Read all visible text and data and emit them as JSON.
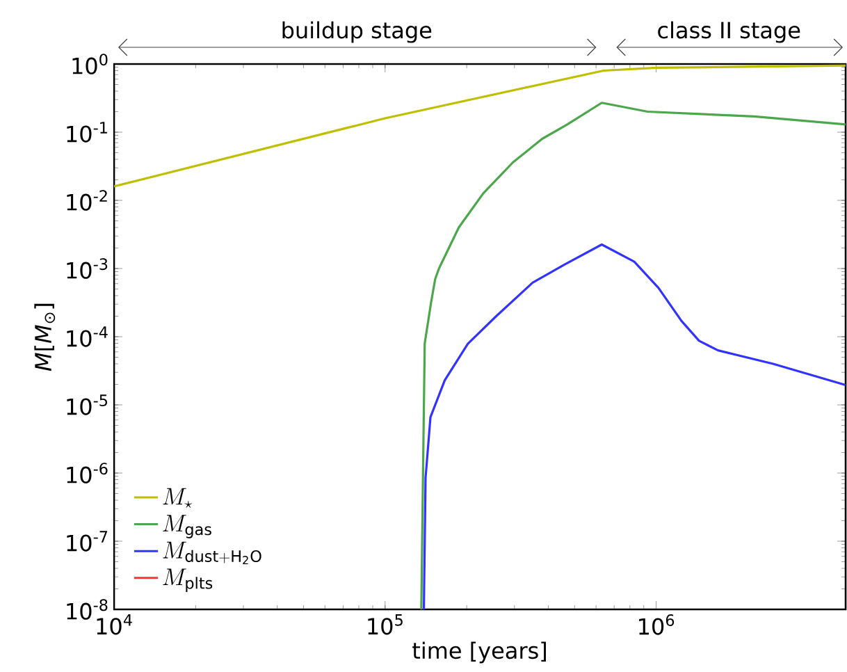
{
  "chart_data": {
    "type": "line",
    "xlabel": "time [years]",
    "ylabel": "*M*[*M*$_{⊙}$]",
    "annotations": [
      "buildup stage",
      "class II stage"
    ],
    "log": "xy",
    "legend": "bottom left",
    "grid": false,
    "xlim": [
      10000,
      5000000
    ],
    "ylim": [
      1e-08,
      1
    ],
    "xticks": [
      {
        "value": 10000,
        "label": "10$^{4}$"
      },
      {
        "value": 100000,
        "label": "10$^{5}$"
      },
      {
        "value": 1000000,
        "label": "10$^{6}$"
      }
    ],
    "yticks": [
      {
        "value": 1e-08,
        "label": "10$^{-8}$"
      },
      {
        "value": 1e-07,
        "label": "10$^{-7}$"
      },
      {
        "value": 1e-06,
        "label": "10$^{-6}$"
      },
      {
        "value": 1e-05,
        "label": "10$^{-5}$"
      },
      {
        "value": 0.0001,
        "label": "10$^{-4}$"
      },
      {
        "value": 0.001,
        "label": "10$^{-3}$"
      },
      {
        "value": 0.01,
        "label": "10$^{-2}$"
      },
      {
        "value": 0.1,
        "label": "10$^{-1}$"
      },
      {
        "value": 1,
        "label": "10$^{0}$"
      }
    ],
    "series": [
      {
        "name": "M_\\star",
        "color": "#bfbf00",
        "x": [
          10000,
          100000,
          640000,
          1000000,
          5000000
        ],
        "values": [
          0.016,
          0.16,
          0.8,
          0.88,
          0.95
        ]
      },
      {
        "name": "M_{\\mathrm{gas}}",
        "color": "#4ca64c",
        "x": [
          136000,
          138000,
          140000,
          148000,
          153000,
          158000,
          187000,
          230000,
          296000,
          380000,
          470000,
          630000,
          930000,
          2300000,
          5000000
        ],
        "values": [
          1e-08,
          1e-06,
          8e-05,
          0.00033,
          0.0007,
          0.001,
          0.004,
          0.0126,
          0.036,
          0.08,
          0.13,
          0.27,
          0.2,
          0.17,
          0.13
        ]
      },
      {
        "name": "M_{\\mathrm{dust+H_2O}}",
        "color": "#3333ff",
        "x": [
          139000,
          141000,
          147000,
          166000,
          202000,
          257000,
          350000,
          460000,
          630000,
          830000,
          1020000,
          1240000,
          1440000,
          1690000,
          2700000,
          5000000
        ],
        "values": [
          1e-08,
          8.5e-07,
          6.6e-06,
          2.3e-05,
          7.9e-05,
          0.0002,
          0.00062,
          0.00115,
          0.00225,
          0.00126,
          0.00052,
          0.00017,
          8.7e-05,
          6.3e-05,
          4e-05,
          1.95e-05
        ]
      },
      {
        "name": "M_{\\mathrm{plts}}",
        "color": "#ff3333"
      }
    ]
  }
}
